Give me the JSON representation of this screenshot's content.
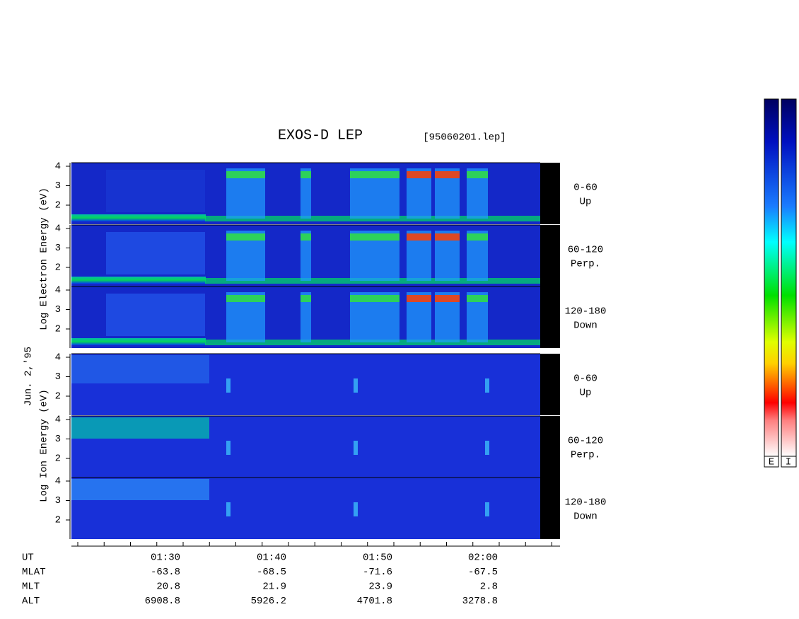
{
  "title": "EXOS-D LEP",
  "file": "[95060201.lep]",
  "date_label": "Jun. 2,'95",
  "electron_axis_label": "Log Electron Energy (eV)",
  "ion_axis_label": "Log Ion Energy (eV)",
  "energy_ticks": [
    4,
    3,
    2
  ],
  "pitch_angles": [
    {
      "range": "0-60",
      "direction": "Up"
    },
    {
      "range": "60-120",
      "direction": "Perp."
    },
    {
      "range": "120-180",
      "direction": "Down"
    }
  ],
  "time_labels": [
    "01:30",
    "01:40",
    "01:50",
    "02:00"
  ],
  "orbit_table": [
    {
      "name": "UT",
      "values": [
        "01:30",
        "01:40",
        "01:50",
        "02:00"
      ]
    },
    {
      "name": "MLAT",
      "values": [
        "-63.8",
        "-68.5",
        "-71.6",
        "-67.5"
      ]
    },
    {
      "name": "MLT",
      "values": [
        "20.8",
        "21.9",
        "23.9",
        "2.8"
      ]
    },
    {
      "name": "ALT",
      "values": [
        "6908.8",
        "5926.2",
        "4701.8",
        "3278.8"
      ]
    }
  ],
  "colorbar_labels": [
    "E",
    "I"
  ]
}
